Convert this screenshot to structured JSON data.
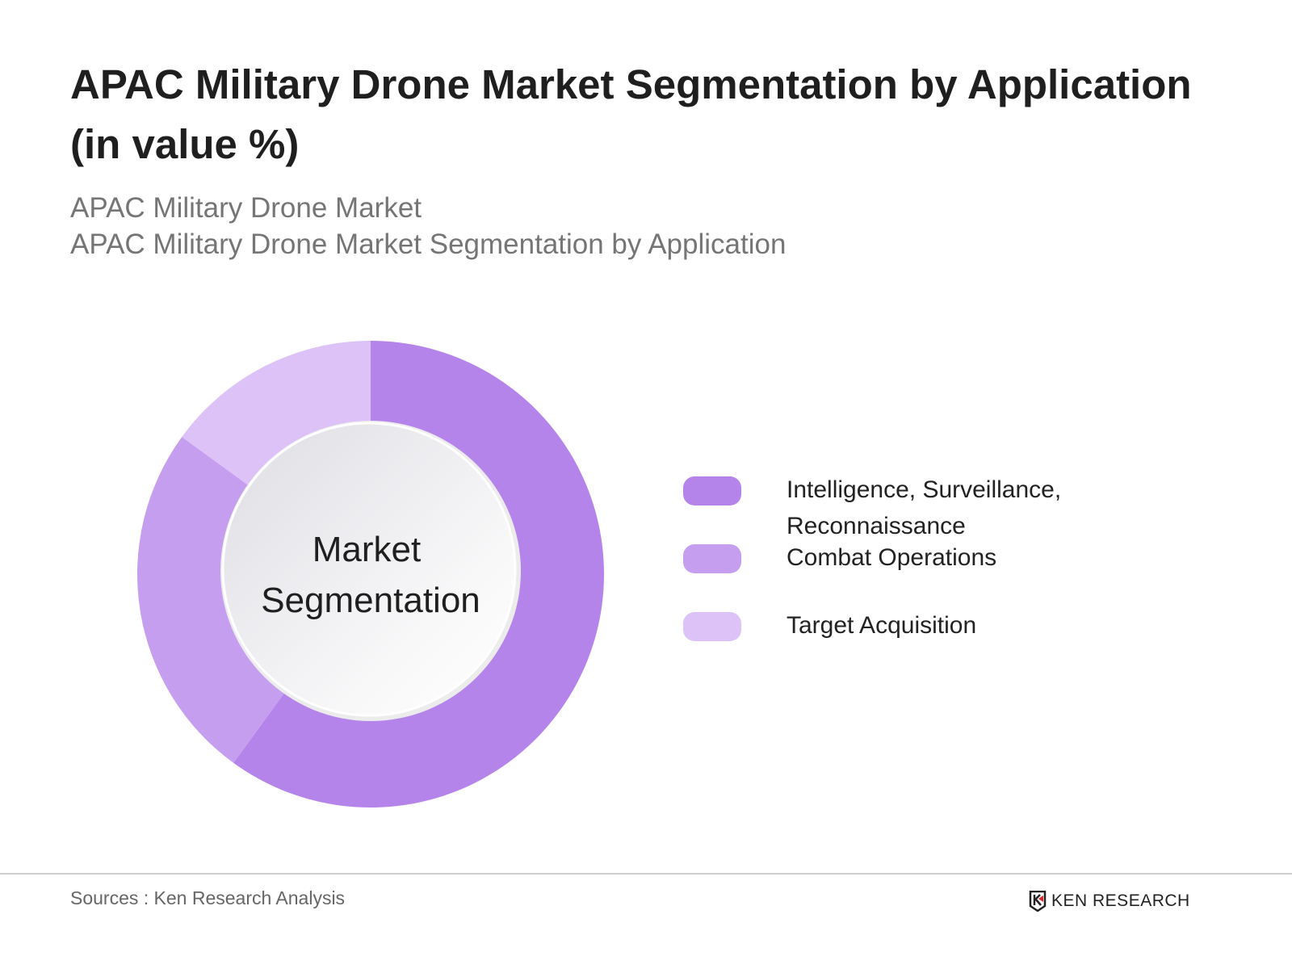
{
  "header": {
    "title": "APAC Military Drone Market Segmentation by Application (in value %)",
    "subtitle_1": "APAC Military Drone Market",
    "subtitle_2": "APAC Military Drone Market Segmentation by Application"
  },
  "chart_data": {
    "type": "pie",
    "variant": "donut",
    "center_label": [
      "Market",
      "Segmentation"
    ],
    "categories": [
      "Intelligence, Surveillance, Reconnaissance",
      "Combat Operations",
      "Target Acquisition"
    ],
    "values": [
      60,
      25,
      15
    ],
    "colors": [
      "#b584eb",
      "#c69ef0",
      "#dcc2f7"
    ],
    "legend_position": "right"
  },
  "footer": {
    "source": "Sources : Ken Research Analysis",
    "logo": "KEN RESEARCH"
  }
}
